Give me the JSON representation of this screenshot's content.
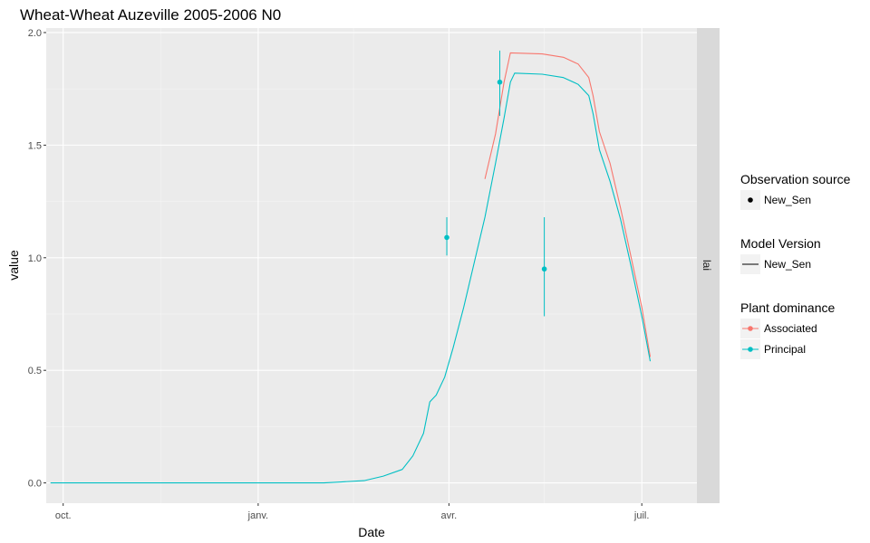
{
  "chart_data": {
    "type": "line",
    "title": "Wheat-Wheat Auzeville 2005-2006 N0",
    "xlabel": "Date",
    "ylabel": "value",
    "facet_label": "lai",
    "xlim": [
      "2005-09-23",
      "2006-07-27"
    ],
    "ylim": [
      -0.09,
      2.02
    ],
    "x_ticks": [
      {
        "date": "2005-10-01",
        "label": "oct."
      },
      {
        "date": "2006-01-01",
        "label": "janv."
      },
      {
        "date": "2006-04-01",
        "label": "avr."
      },
      {
        "date": "2006-07-01",
        "label": "juil."
      }
    ],
    "x_minor_ticks": [
      "2005-11-16",
      "2006-02-15",
      "2006-05-16"
    ],
    "y_ticks": [
      0.0,
      0.5,
      1.0,
      1.5,
      2.0
    ],
    "y_tick_labels": [
      "0.0",
      "0.5",
      "1.0",
      "1.5",
      "2.0"
    ],
    "grid": true,
    "legend_position": "right",
    "legend": {
      "observation_source": {
        "title": "Observation source",
        "items": [
          "New_Sen"
        ]
      },
      "model_version": {
        "title": "Model Version",
        "items": [
          "New_Sen"
        ]
      },
      "plant_dominance": {
        "title": "Plant dominance",
        "items": [
          "Associated",
          "Principal"
        ]
      }
    },
    "colors": {
      "Associated": "#f8766d",
      "Principal": "#00bfc4",
      "panel": "#ebebeb",
      "strip": "#d9d9d9"
    },
    "series": [
      {
        "name": "Principal",
        "points": [
          [
            "2005-09-25",
            0.0
          ],
          [
            "2006-02-01",
            0.0
          ],
          [
            "2006-02-10",
            0.005
          ],
          [
            "2006-02-20",
            0.01
          ],
          [
            "2006-03-01",
            0.03
          ],
          [
            "2006-03-10",
            0.06
          ],
          [
            "2006-03-15",
            0.12
          ],
          [
            "2006-03-20",
            0.22
          ],
          [
            "2006-03-23",
            0.36
          ],
          [
            "2006-03-26",
            0.39
          ],
          [
            "2006-03-30",
            0.47
          ],
          [
            "2006-04-03",
            0.6
          ],
          [
            "2006-04-08",
            0.78
          ],
          [
            "2006-04-13",
            0.98
          ],
          [
            "2006-04-18",
            1.18
          ],
          [
            "2006-04-23",
            1.42
          ],
          [
            "2006-04-27",
            1.62
          ],
          [
            "2006-04-30",
            1.78
          ],
          [
            "2006-05-02",
            1.82
          ],
          [
            "2006-05-15",
            1.815
          ],
          [
            "2006-05-25",
            1.8
          ],
          [
            "2006-06-01",
            1.77
          ],
          [
            "2006-06-06",
            1.72
          ],
          [
            "2006-06-08",
            1.64
          ],
          [
            "2006-06-11",
            1.48
          ],
          [
            "2006-06-16",
            1.34
          ],
          [
            "2006-06-21",
            1.17
          ],
          [
            "2006-06-26",
            0.96
          ],
          [
            "2006-07-01",
            0.74
          ],
          [
            "2006-07-05",
            0.54
          ]
        ],
        "observations": [
          {
            "date": "2006-03-31",
            "value": 1.09,
            "ymin": 1.01,
            "ymax": 1.18
          },
          {
            "date": "2006-04-25",
            "value": 1.78,
            "ymin": 1.63,
            "ymax": 1.92
          },
          {
            "date": "2006-05-16",
            "value": 0.95,
            "ymin": 0.74,
            "ymax": 1.18
          }
        ]
      },
      {
        "name": "Associated",
        "points": [
          [
            "2006-04-18",
            1.35
          ],
          [
            "2006-04-23",
            1.55
          ],
          [
            "2006-04-27",
            1.78
          ],
          [
            "2006-04-30",
            1.91
          ],
          [
            "2006-05-15",
            1.905
          ],
          [
            "2006-05-25",
            1.89
          ],
          [
            "2006-06-01",
            1.86
          ],
          [
            "2006-06-06",
            1.8
          ],
          [
            "2006-06-08",
            1.72
          ],
          [
            "2006-06-11",
            1.56
          ],
          [
            "2006-06-16",
            1.42
          ],
          [
            "2006-06-21",
            1.22
          ],
          [
            "2006-06-26",
            1.0
          ],
          [
            "2006-07-01",
            0.78
          ],
          [
            "2006-07-05",
            0.56
          ]
        ],
        "observations": []
      }
    ]
  }
}
